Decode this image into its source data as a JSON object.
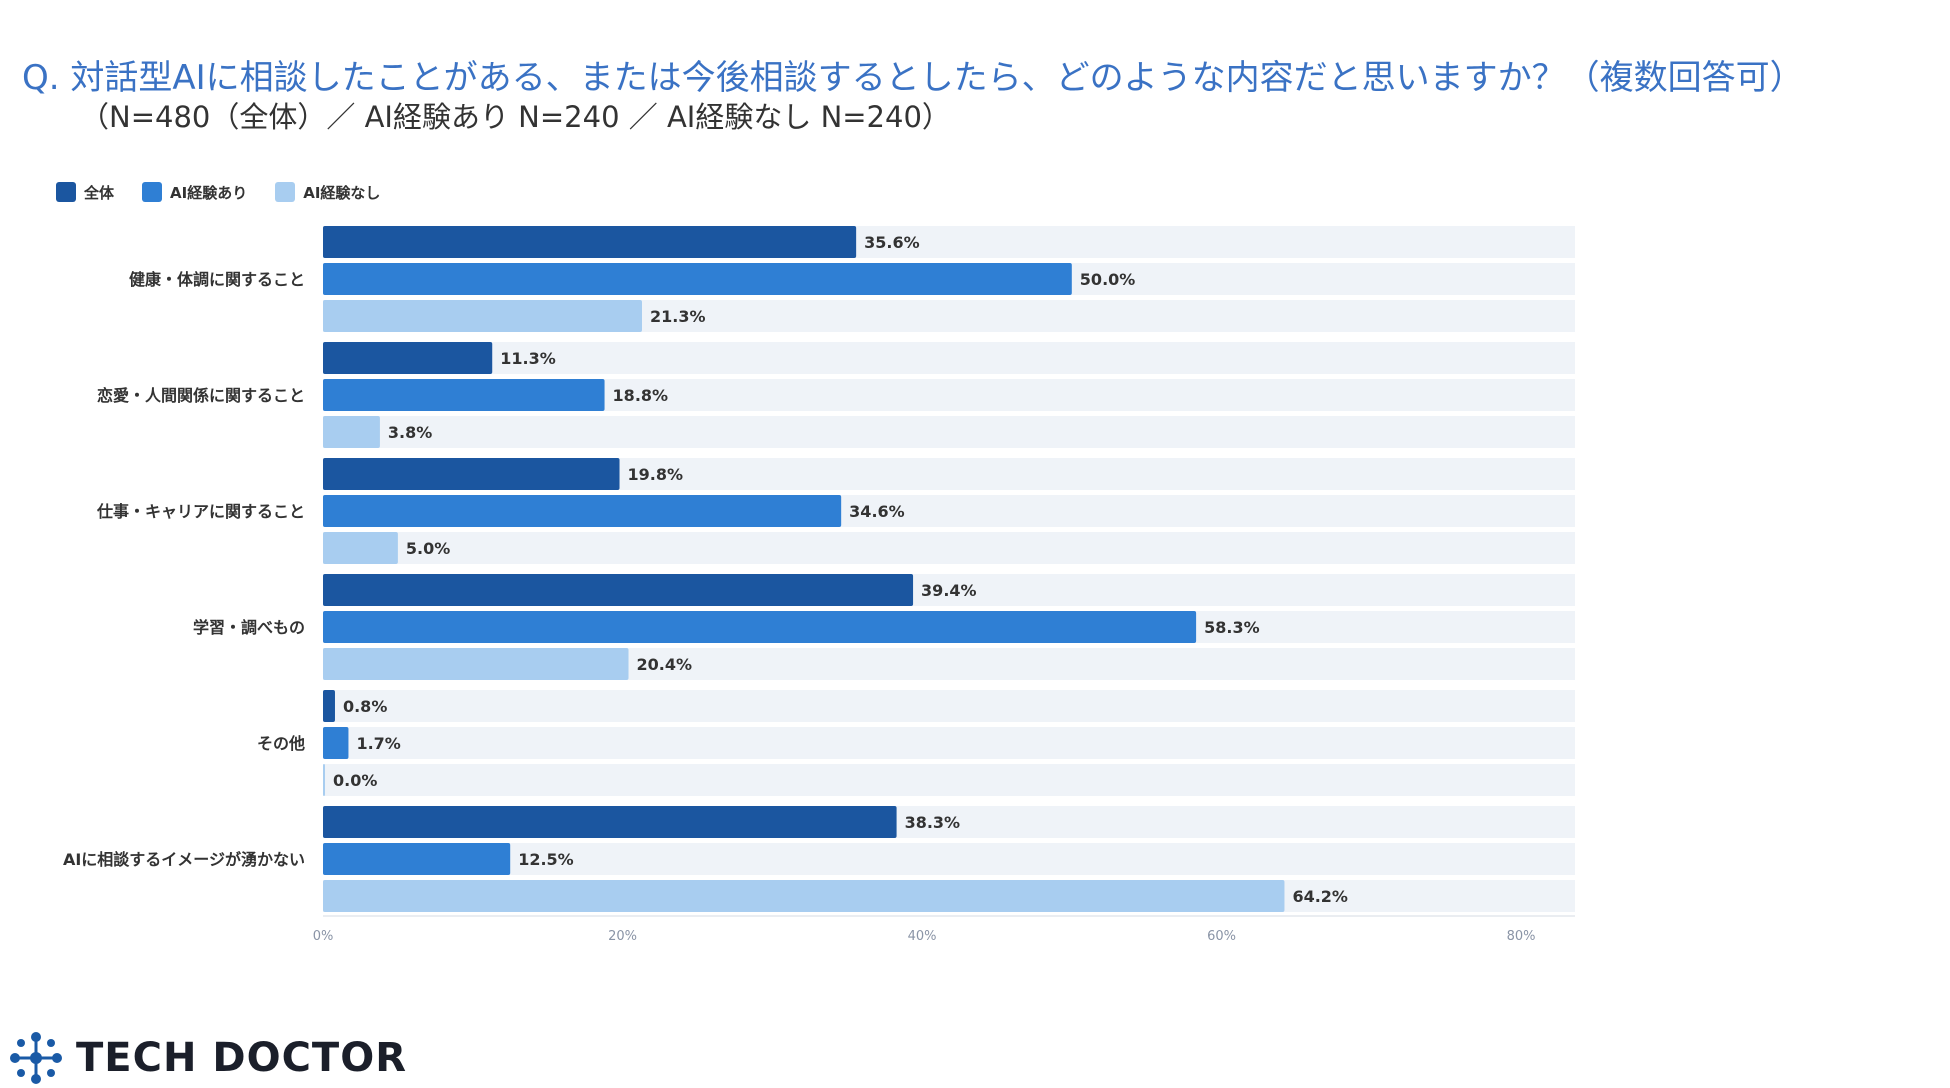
{
  "header": {
    "question": "Q.  対話型AIに相談したことがある、または今後相談するとしたら、どのような内容だと思いますか？（複数回答可）",
    "sample": "（N=480（全体）／ AI経験あり N=240 ／ AI経験なし N=240）"
  },
  "colors": {
    "track": "#eff3f8",
    "axis_line": "#d5dbe3",
    "tick_text": "#8a94a6",
    "label_text": "#333333",
    "question_text": "#3a72c4"
  },
  "chart_data": {
    "type": "bar",
    "orientation": "horizontal",
    "categories": [
      "健康・体調に関すること",
      "恋愛・人間関係に関すること",
      "仕事・キャリアに関すること",
      "学習・調べもの",
      "その他",
      "AIに相談するイメージが湧かない"
    ],
    "series": [
      {
        "name": "全体",
        "color": "#1b56a0",
        "values": [
          35.6,
          11.3,
          19.8,
          39.4,
          0.8,
          38.3
        ],
        "labels": [
          "35.6%",
          "11.3%",
          "19.8%",
          "39.4%",
          "0.8%",
          "38.3%"
        ]
      },
      {
        "name": "AI経験あり",
        "color": "#2f7fd4",
        "values": [
          50.0,
          18.8,
          34.6,
          58.3,
          1.7,
          12.5
        ],
        "labels": [
          "50.0%",
          "18.8%",
          "34.6%",
          "58.3%",
          "1.7%",
          "12.5%"
        ]
      },
      {
        "name": "AI経験なし",
        "color": "#a8cdf0",
        "values": [
          21.3,
          3.8,
          5.0,
          20.4,
          0.0,
          64.2
        ],
        "labels": [
          "21.3%",
          "3.8%",
          "5.0%",
          "20.4%",
          "0.0%",
          "64.2%"
        ]
      }
    ],
    "xlim": [
      0,
      83.6
    ],
    "xticks": [
      0,
      20,
      40,
      60,
      80
    ],
    "xtick_labels": [
      "0%",
      "20%",
      "40%",
      "60%",
      "80%"
    ],
    "legend_position": "top-left",
    "grid": false
  },
  "footer": {
    "logo_text": "TECH DOCTOR",
    "logo_icon": "molecule-icon"
  }
}
